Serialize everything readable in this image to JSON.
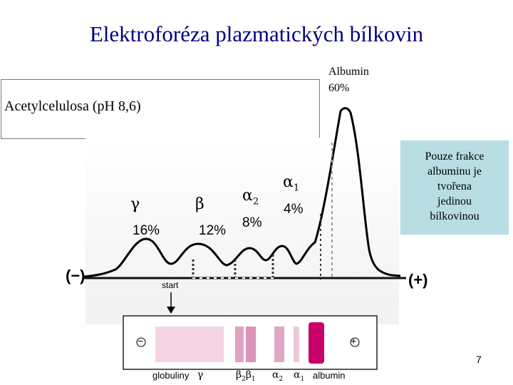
{
  "title": "Elektroforéza plazmatických bílkovin",
  "medium_label": "Acetylcelulosa (pH 8,6)",
  "albumin": {
    "line1": "Albumin",
    "line2": "60%"
  },
  "fractions": {
    "gamma": {
      "symbol": "γ",
      "percent": "16%"
    },
    "beta": {
      "symbol": "β",
      "percent": "12%"
    },
    "alpha2": {
      "symbol": "α",
      "subscript": "2",
      "percent": "8%"
    },
    "alpha1": {
      "symbol": "α",
      "subscript": "1",
      "percent": "4%"
    }
  },
  "note": {
    "lines": [
      "Pouze frakce",
      "albuminu je",
      "tvořena",
      "jedinou",
      "bílkovinou"
    ]
  },
  "electrodes": {
    "negative": "(−)",
    "positive": "(+)"
  },
  "start_label": "start",
  "strip": {
    "minus": "−",
    "plus": "+",
    "labels": {
      "globuliny": "globuliny",
      "gamma": "γ",
      "beta2": "β",
      "beta2_sub": "2",
      "beta1": "β",
      "beta1_sub": "1",
      "alpha2": "α",
      "alpha2_sub": "2",
      "alpha1": "α",
      "alpha1_sub": "1",
      "albumin": "albumin"
    }
  },
  "page_number": "7",
  "colors": {
    "title": "#000080",
    "note_bg": "#b8dde3",
    "band": "#c8006a"
  }
}
